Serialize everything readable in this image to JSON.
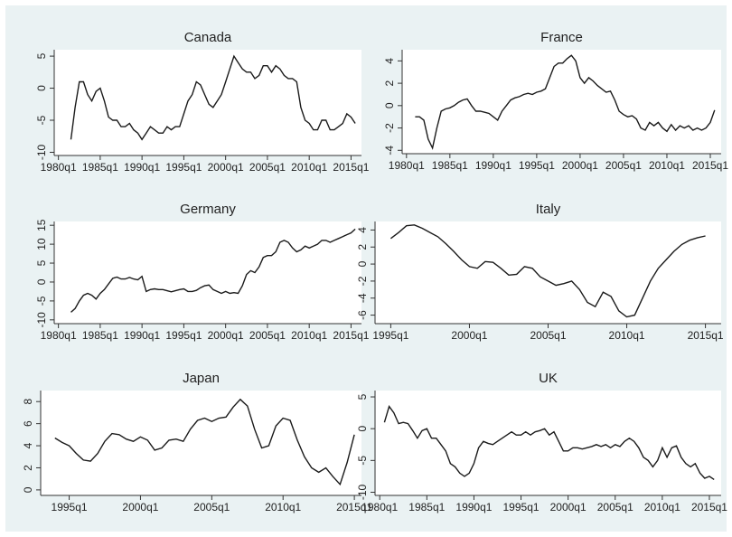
{
  "chart_data": [
    {
      "type": "line",
      "title": "Canada",
      "color": "#1a1a1a",
      "grid": false,
      "x": [
        "1981q3",
        "1982q1",
        "1982q3",
        "1983q1",
        "1983q3",
        "1984q1",
        "1984q3",
        "1985q1",
        "1985q3",
        "1986q1",
        "1986q3",
        "1987q1",
        "1987q3",
        "1988q1",
        "1988q3",
        "1989q1",
        "1989q3",
        "1990q1",
        "1990q3",
        "1991q1",
        "1991q3",
        "1992q1",
        "1992q3",
        "1993q1",
        "1993q3",
        "1994q1",
        "1994q3",
        "1995q1",
        "1995q3",
        "1996q1",
        "1996q3",
        "1997q1",
        "1997q3",
        "1998q1",
        "1998q3",
        "1999q1",
        "1999q3",
        "2000q1",
        "2000q3",
        "2001q1",
        "2001q3",
        "2002q1",
        "2002q3",
        "2003q1",
        "2003q3",
        "2004q1",
        "2004q3",
        "2005q1",
        "2005q3",
        "2006q1",
        "2006q3",
        "2007q1",
        "2007q3",
        "2008q1",
        "2008q3",
        "2009q1",
        "2009q3",
        "2010q1",
        "2010q3",
        "2011q1",
        "2011q3",
        "2012q1",
        "2012q3",
        "2013q1",
        "2013q3",
        "2014q1",
        "2014q3",
        "2015q1",
        "2015q3"
      ],
      "values": [
        -8,
        -3,
        1,
        1,
        -1,
        -2,
        -0.5,
        0,
        -2,
        -4.5,
        -5,
        -5,
        -6,
        -6,
        -5.5,
        -6.5,
        -7,
        -8,
        -7,
        -6,
        -6.5,
        -7,
        -7,
        -6,
        -6.5,
        -6,
        -6,
        -4,
        -2,
        -1,
        1,
        0.5,
        -1,
        -2.5,
        -3,
        -2,
        -1,
        1,
        3,
        5,
        4,
        3,
        2.5,
        2.5,
        1.5,
        2,
        3.5,
        3.5,
        2.5,
        3.5,
        3,
        2,
        1.5,
        1.5,
        1,
        -3,
        -5,
        -5.5,
        -6.5,
        -6.5,
        -5,
        -5,
        -6.5,
        -6.5,
        -6,
        -5.5,
        -4,
        -4.5,
        -5.5
      ],
      "xlim": [
        "1979q3",
        "2016q2"
      ],
      "xticks": [
        "1980q1",
        "1985q1",
        "1990q1",
        "1995q1",
        "2000q1",
        "2005q1",
        "2010q1",
        "2015q1"
      ],
      "ylim": [
        -10.5,
        6
      ],
      "yticks": [
        -10,
        -5,
        0,
        5
      ]
    },
    {
      "type": "line",
      "title": "France",
      "color": "#1a1a1a",
      "grid": false,
      "x": [
        "1981q1",
        "1981q3",
        "1982q1",
        "1982q3",
        "1983q1",
        "1983q3",
        "1984q1",
        "1984q3",
        "1985q1",
        "1985q3",
        "1986q1",
        "1986q3",
        "1987q1",
        "1987q3",
        "1988q1",
        "1988q3",
        "1989q1",
        "1989q3",
        "1990q1",
        "1990q3",
        "1991q1",
        "1991q3",
        "1992q1",
        "1992q3",
        "1993q1",
        "1993q3",
        "1994q1",
        "1994q3",
        "1995q1",
        "1995q3",
        "1996q1",
        "1996q3",
        "1997q1",
        "1997q3",
        "1998q1",
        "1998q3",
        "1999q1",
        "1999q3",
        "2000q1",
        "2000q3",
        "2001q1",
        "2001q3",
        "2002q1",
        "2002q3",
        "2003q1",
        "2003q3",
        "2004q1",
        "2004q3",
        "2005q1",
        "2005q3",
        "2006q1",
        "2006q3",
        "2007q1",
        "2007q3",
        "2008q1",
        "2008q3",
        "2009q1",
        "2009q3",
        "2010q1",
        "2010q3",
        "2011q1",
        "2011q3",
        "2012q1",
        "2012q3",
        "2013q1",
        "2013q3",
        "2014q1",
        "2014q3",
        "2015q1",
        "2015q3"
      ],
      "values": [
        -1,
        -1,
        -1.3,
        -3,
        -3.8,
        -2,
        -0.5,
        -0.3,
        -0.2,
        0,
        0.3,
        0.5,
        0.6,
        0,
        -0.5,
        -0.5,
        -0.6,
        -0.7,
        -1,
        -1.3,
        -0.5,
        0,
        0.5,
        0.7,
        0.8,
        1,
        1.1,
        1,
        1.2,
        1.3,
        1.5,
        2.5,
        3.5,
        3.8,
        3.8,
        4.2,
        4.5,
        4,
        2.5,
        2,
        2.5,
        2.2,
        1.8,
        1.5,
        1.2,
        1.3,
        0.5,
        -0.5,
        -0.8,
        -1,
        -0.9,
        -1.2,
        -2,
        -2.2,
        -1.5,
        -1.8,
        -1.5,
        -2,
        -2.3,
        -1.7,
        -2.2,
        -1.8,
        -2,
        -1.8,
        -2.2,
        -2,
        -2.2,
        -2,
        -1.5,
        -0.4
      ],
      "xlim": [
        "1979q3",
        "2016q2"
      ],
      "xticks": [
        "1980q1",
        "1985q1",
        "1990q1",
        "1995q1",
        "2000q1",
        "2005q1",
        "2010q1",
        "2015q1"
      ],
      "ylim": [
        -4.3,
        5
      ],
      "yticks": [
        -4,
        -2,
        0,
        2,
        4
      ]
    },
    {
      "type": "line",
      "title": "Germany",
      "color": "#1a1a1a",
      "grid": false,
      "x": [
        "1981q3",
        "1982q1",
        "1982q3",
        "1983q1",
        "1983q3",
        "1984q1",
        "1984q3",
        "1985q1",
        "1985q3",
        "1986q1",
        "1986q3",
        "1987q1",
        "1987q3",
        "1988q1",
        "1988q3",
        "1989q1",
        "1989q3",
        "1990q1",
        "1990q3",
        "1991q1",
        "1991q3",
        "1992q1",
        "1992q3",
        "1993q1",
        "1993q3",
        "1994q1",
        "1994q3",
        "1995q1",
        "1995q3",
        "1996q1",
        "1996q3",
        "1997q1",
        "1997q3",
        "1998q1",
        "1998q3",
        "1999q1",
        "1999q3",
        "2000q1",
        "2000q3",
        "2001q1",
        "2001q3",
        "2002q1",
        "2002q3",
        "2003q1",
        "2003q3",
        "2004q1",
        "2004q3",
        "2005q1",
        "2005q3",
        "2006q1",
        "2006q3",
        "2007q1",
        "2007q3",
        "2008q1",
        "2008q3",
        "2009q1",
        "2009q3",
        "2010q1",
        "2010q3",
        "2011q1",
        "2011q3",
        "2012q1",
        "2012q3",
        "2013q1",
        "2013q3",
        "2014q1",
        "2014q3",
        "2015q1",
        "2015q3"
      ],
      "values": [
        -8,
        -7,
        -5,
        -3.5,
        -3,
        -3.5,
        -4.5,
        -3,
        -2,
        -0.5,
        1,
        1.3,
        0.8,
        0.8,
        1.2,
        0.8,
        0.6,
        1.5,
        -2.5,
        -2,
        -1.8,
        -2,
        -2,
        -2.3,
        -2.6,
        -2.3,
        -2,
        -1.8,
        -2.5,
        -2.5,
        -2.2,
        -1.5,
        -1,
        -0.8,
        -2,
        -2.5,
        -3,
        -2.5,
        -3,
        -2.8,
        -3,
        -1,
        2,
        3,
        2.5,
        4,
        6.5,
        7,
        7,
        8,
        10.5,
        11,
        10.5,
        9,
        8,
        8.5,
        9.5,
        9,
        9.5,
        10,
        11,
        11,
        10.5,
        11,
        11.5,
        12,
        12.5,
        13,
        14
      ],
      "xlim": [
        "1979q3",
        "2016q2"
      ],
      "xticks": [
        "1980q1",
        "1985q1",
        "1990q1",
        "1995q1",
        "2000q1",
        "2005q1",
        "2010q1",
        "2015q1"
      ],
      "ylim": [
        -11,
        16
      ],
      "yticks": [
        -10,
        -5,
        0,
        5,
        10,
        15
      ]
    },
    {
      "type": "line",
      "title": "Italy",
      "color": "#1a1a1a",
      "grid": false,
      "x": [
        "1995q1",
        "1995q3",
        "1996q1",
        "1996q3",
        "1997q1",
        "1997q3",
        "1998q1",
        "1998q3",
        "1999q1",
        "1999q3",
        "2000q1",
        "2000q3",
        "2001q1",
        "2001q3",
        "2002q1",
        "2002q3",
        "2003q1",
        "2003q3",
        "2004q1",
        "2004q3",
        "2005q1",
        "2005q3",
        "2006q1",
        "2006q3",
        "2007q1",
        "2007q3",
        "2008q1",
        "2008q3",
        "2009q1",
        "2009q3",
        "2010q1",
        "2010q3",
        "2011q1",
        "2011q3",
        "2012q1",
        "2012q3",
        "2013q1",
        "2013q3",
        "2014q1",
        "2014q3",
        "2015q1"
      ],
      "values": [
        3,
        3.7,
        4.5,
        4.6,
        4.2,
        3.7,
        3.2,
        2.4,
        1.5,
        0.5,
        -0.3,
        -0.5,
        0.3,
        0.2,
        -0.5,
        -1.3,
        -1.2,
        -0.3,
        -0.5,
        -1.5,
        -2,
        -2.5,
        -2.3,
        -2,
        -3,
        -4.5,
        -5,
        -3.3,
        -3.8,
        -5.5,
        -6.2,
        -6,
        -4,
        -2,
        -0.5,
        0.5,
        1.5,
        2.3,
        2.8,
        3.1,
        3.3
      ],
      "xlim": [
        "1994q1",
        "2016q1"
      ],
      "xticks": [
        "1995q1",
        "2000q1",
        "2005q1",
        "2010q1",
        "2015q1"
      ],
      "ylim": [
        -7,
        5
      ],
      "yticks": [
        -6,
        -4,
        -2,
        0,
        2,
        4
      ]
    },
    {
      "type": "line",
      "title": "Japan",
      "color": "#1a1a1a",
      "grid": false,
      "x": [
        "1994q1",
        "1994q3",
        "1995q1",
        "1995q3",
        "1996q1",
        "1996q3",
        "1997q1",
        "1997q3",
        "1998q1",
        "1998q3",
        "1999q1",
        "1999q3",
        "2000q1",
        "2000q3",
        "2001q1",
        "2001q3",
        "2002q1",
        "2002q3",
        "2003q1",
        "2003q3",
        "2004q1",
        "2004q3",
        "2005q1",
        "2005q3",
        "2006q1",
        "2006q3",
        "2007q1",
        "2007q3",
        "2008q1",
        "2008q3",
        "2009q1",
        "2009q3",
        "2010q1",
        "2010q3",
        "2011q1",
        "2011q3",
        "2012q1",
        "2012q3",
        "2013q1",
        "2013q3",
        "2014q1",
        "2014q3",
        "2015q1"
      ],
      "values": [
        4.7,
        4.3,
        4,
        3.3,
        2.7,
        2.6,
        3.3,
        4.4,
        5.1,
        5,
        4.6,
        4.4,
        4.8,
        4.5,
        3.6,
        3.8,
        4.5,
        4.6,
        4.4,
        5.5,
        6.3,
        6.5,
        6.2,
        6.5,
        6.6,
        7.5,
        8.2,
        7.6,
        5.5,
        3.8,
        4,
        5.8,
        6.5,
        6.3,
        4.5,
        3,
        2,
        1.6,
        2,
        1.2,
        0.5,
        2.5,
        5
      ],
      "xlim": [
        "1993q1",
        "2015q3"
      ],
      "xticks": [
        "1995q1",
        "2000q1",
        "2005q1",
        "2010q1",
        "2015q1"
      ],
      "ylim": [
        -0.5,
        9
      ],
      "yticks": [
        0,
        2,
        4,
        6,
        8
      ]
    },
    {
      "type": "line",
      "title": "UK",
      "color": "#1a1a1a",
      "grid": false,
      "x": [
        "1980q3",
        "1981q1",
        "1981q3",
        "1982q1",
        "1982q3",
        "1983q1",
        "1983q3",
        "1984q1",
        "1984q3",
        "1985q1",
        "1985q3",
        "1986q1",
        "1986q3",
        "1987q1",
        "1987q3",
        "1988q1",
        "1988q3",
        "1989q1",
        "1989q3",
        "1990q1",
        "1990q3",
        "1991q1",
        "1991q3",
        "1992q1",
        "1992q3",
        "1993q1",
        "1993q3",
        "1994q1",
        "1994q3",
        "1995q1",
        "1995q3",
        "1996q1",
        "1996q3",
        "1997q1",
        "1997q3",
        "1998q1",
        "1998q3",
        "1999q1",
        "1999q3",
        "2000q1",
        "2000q3",
        "2001q1",
        "2001q3",
        "2002q1",
        "2002q3",
        "2003q1",
        "2003q3",
        "2004q1",
        "2004q3",
        "2005q1",
        "2005q3",
        "2006q1",
        "2006q3",
        "2007q1",
        "2007q3",
        "2008q1",
        "2008q3",
        "2009q1",
        "2009q3",
        "2010q1",
        "2010q3",
        "2011q1",
        "2011q3",
        "2012q1",
        "2012q3",
        "2013q1",
        "2013q3",
        "2014q1",
        "2014q3",
        "2015q1",
        "2015q3"
      ],
      "values": [
        1,
        3.5,
        2.5,
        0.8,
        1,
        0.8,
        -0.3,
        -1.5,
        -0.3,
        0,
        -1.5,
        -1.5,
        -2.5,
        -3.5,
        -5.5,
        -6,
        -7,
        -7.5,
        -7,
        -5.5,
        -3,
        -2,
        -2.3,
        -2.5,
        -2,
        -1.5,
        -1,
        -0.5,
        -1,
        -1,
        -0.5,
        -1,
        -0.5,
        -0.3,
        0,
        -1,
        -0.5,
        -2,
        -3.5,
        -3.5,
        -3,
        -3,
        -3.2,
        -3,
        -2.8,
        -2.5,
        -2.8,
        -2.5,
        -3,
        -2.5,
        -2.8,
        -2,
        -1.5,
        -2,
        -3,
        -4.5,
        -5,
        -6,
        -5,
        -3,
        -4.5,
        -3,
        -2.7,
        -4.5,
        -5.5,
        -6,
        -5.5,
        -7,
        -7.8,
        -7.5,
        -8
      ],
      "xlim": [
        "1979q3",
        "2016q2"
      ],
      "xticks": [
        "1980q1",
        "1985q1",
        "1990q1",
        "1995q1",
        "2000q1",
        "2005q1",
        "2010q1",
        "2015q1"
      ],
      "ylim": [
        -10.5,
        6
      ],
      "yticks": [
        -10,
        -5,
        0,
        5
      ]
    }
  ]
}
